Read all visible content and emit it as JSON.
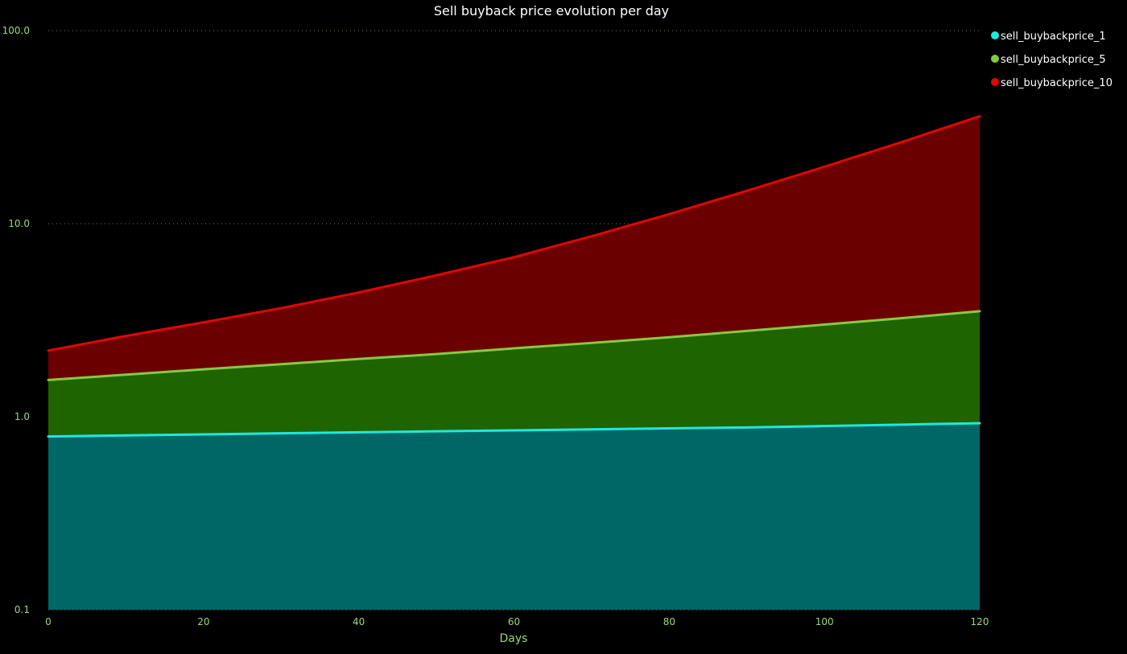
{
  "chart_data": {
    "type": "area",
    "title": "Sell buyback price evolution per day",
    "xlabel": "Days",
    "ylabel": "",
    "xlim": [
      0,
      120
    ],
    "ylim": [
      0.1,
      100.0
    ],
    "yscale": "log",
    "xticks": [
      0,
      20,
      40,
      60,
      80,
      100,
      120
    ],
    "xtick_labels": [
      "0",
      "20",
      "40",
      "60",
      "80",
      "100",
      "120"
    ],
    "yticks": [
      0.1,
      1.0,
      10.0,
      100.0
    ],
    "ytick_labels": [
      "0.1",
      "1.0",
      "10.0",
      "100.0"
    ],
    "grid": "y-dotted",
    "legend_position": "top-right",
    "x": [
      0,
      10,
      20,
      30,
      40,
      50,
      60,
      70,
      80,
      90,
      100,
      110,
      120
    ],
    "series": [
      {
        "name": "sell_buybackprice_1",
        "line_color": "#1de9e0",
        "fill_color": "#006666",
        "values": [
          0.79,
          0.8,
          0.81,
          0.82,
          0.83,
          0.84,
          0.85,
          0.86,
          0.87,
          0.88,
          0.895,
          0.91,
          0.925
        ]
      },
      {
        "name": "sell_buybackprice_5",
        "line_color": "#86c944",
        "fill_color": "#1e6400",
        "values": [
          1.55,
          1.65,
          1.76,
          1.87,
          1.99,
          2.11,
          2.26,
          2.41,
          2.58,
          2.78,
          3.0,
          3.24,
          3.52
        ]
      },
      {
        "name": "sell_buybackprice_10",
        "line_color": "#e10600",
        "fill_color": "#6a0000",
        "values": [
          2.2,
          2.62,
          3.08,
          3.65,
          4.4,
          5.4,
          6.7,
          8.6,
          11.2,
          14.8,
          19.7,
          26.5,
          36.0
        ]
      }
    ]
  },
  "colors": {
    "background": "#000000",
    "grid": "#6b7a58",
    "tick_text": "#9bd87a",
    "axis_label": "#9bd87a",
    "title": "#ffffff",
    "legend_text": "#ffffff"
  }
}
